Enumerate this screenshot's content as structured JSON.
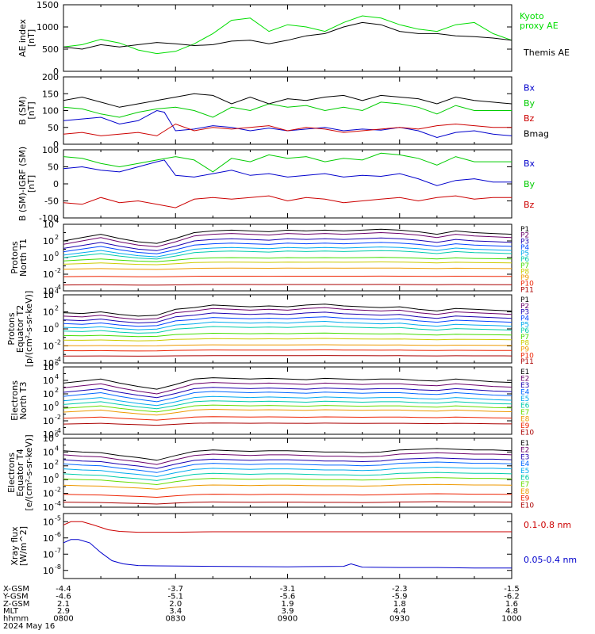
{
  "chart_data": [
    {
      "type": "line",
      "ylabel": [
        "AE index",
        "[nT]"
      ],
      "ylim": [
        0,
        1500
      ],
      "yticks": [
        "0",
        "500",
        "1000",
        "1500"
      ],
      "series": [
        {
          "name": "Kyoto proxy AE",
          "name_lines": [
            "Kyoto",
            "proxy AE"
          ],
          "color": "#00dd00",
          "x": [
            0,
            5,
            10,
            15,
            20,
            25,
            30,
            35,
            40,
            45,
            50,
            55,
            60,
            65,
            70,
            75,
            80,
            85,
            90,
            95,
            100,
            105,
            110,
            115,
            120
          ],
          "values": [
            550,
            600,
            720,
            640,
            480,
            400,
            450,
            620,
            850,
            1150,
            1200,
            900,
            1050,
            1000,
            900,
            1100,
            1250,
            1200,
            1050,
            950,
            900,
            1050,
            1100,
            850,
            700
          ]
        },
        {
          "name": "Themis AE",
          "name_lines": [
            "Themis AE"
          ],
          "color": "#000000",
          "x": [
            0,
            5,
            10,
            15,
            20,
            25,
            30,
            35,
            40,
            45,
            50,
            55,
            60,
            65,
            70,
            75,
            80,
            85,
            90,
            95,
            100,
            105,
            110,
            115,
            120
          ],
          "values": [
            550,
            500,
            600,
            550,
            600,
            650,
            620,
            580,
            600,
            680,
            700,
            620,
            700,
            800,
            850,
            1000,
            1100,
            1050,
            900,
            850,
            850,
            800,
            780,
            750,
            700
          ]
        }
      ]
    },
    {
      "type": "line",
      "ylabel": [
        "B (SM)",
        "[nT]"
      ],
      "ylim": [
        0,
        200
      ],
      "yticks": [
        "0",
        "50",
        "100",
        "150",
        "200"
      ],
      "series": [
        {
          "name": "Bx",
          "color": "#0000cc",
          "x": [
            0,
            5,
            10,
            15,
            20,
            25,
            27,
            30,
            35,
            40,
            45,
            50,
            55,
            60,
            65,
            70,
            75,
            80,
            85,
            90,
            95,
            100,
            105,
            110,
            115,
            120
          ],
          "values": [
            70,
            75,
            80,
            60,
            70,
            100,
            95,
            40,
            45,
            55,
            50,
            40,
            48,
            40,
            45,
            50,
            40,
            45,
            42,
            50,
            40,
            20,
            35,
            40,
            30,
            25
          ]
        },
        {
          "name": "By",
          "color": "#00cc00",
          "x": [
            0,
            5,
            10,
            15,
            20,
            25,
            30,
            35,
            40,
            45,
            50,
            55,
            60,
            65,
            70,
            75,
            80,
            85,
            90,
            95,
            100,
            105,
            110,
            115,
            120
          ],
          "values": [
            110,
            105,
            90,
            80,
            95,
            105,
            110,
            100,
            80,
            110,
            100,
            120,
            110,
            115,
            100,
            110,
            100,
            125,
            120,
            110,
            90,
            115,
            100,
            100,
            100
          ]
        },
        {
          "name": "Bz",
          "color": "#cc0000",
          "x": [
            0,
            5,
            10,
            15,
            20,
            25,
            30,
            35,
            40,
            45,
            50,
            55,
            60,
            65,
            70,
            75,
            80,
            85,
            90,
            95,
            100,
            105,
            110,
            115,
            120
          ],
          "values": [
            30,
            35,
            25,
            30,
            35,
            25,
            60,
            40,
            50,
            45,
            50,
            55,
            40,
            50,
            45,
            35,
            40,
            45,
            50,
            45,
            55,
            60,
            55,
            50,
            50
          ]
        },
        {
          "name": "Bmag",
          "color": "#000000",
          "x": [
            0,
            5,
            10,
            15,
            20,
            25,
            30,
            35,
            40,
            45,
            50,
            55,
            60,
            65,
            70,
            75,
            80,
            85,
            90,
            95,
            100,
            105,
            110,
            115,
            120
          ],
          "values": [
            130,
            140,
            125,
            110,
            120,
            130,
            140,
            150,
            145,
            120,
            140,
            120,
            135,
            130,
            140,
            145,
            130,
            145,
            140,
            135,
            120,
            140,
            130,
            125,
            120
          ]
        }
      ]
    },
    {
      "type": "line",
      "ylabel": [
        "B (SM)-IGRF (SM)",
        "[nT]"
      ],
      "ylim": [
        -100,
        100
      ],
      "yticks": [
        "-100",
        "-50",
        "0",
        "50",
        "100"
      ],
      "series": [
        {
          "name": "Bx",
          "color": "#0000cc",
          "x": [
            0,
            5,
            10,
            15,
            20,
            25,
            27,
            30,
            35,
            40,
            45,
            50,
            55,
            60,
            65,
            70,
            75,
            80,
            85,
            90,
            95,
            100,
            105,
            110,
            115,
            120
          ],
          "values": [
            45,
            50,
            40,
            35,
            50,
            65,
            70,
            25,
            20,
            30,
            40,
            25,
            30,
            20,
            25,
            30,
            20,
            25,
            22,
            30,
            15,
            -5,
            10,
            15,
            5,
            5
          ]
        },
        {
          "name": "By",
          "color": "#00cc00",
          "x": [
            0,
            5,
            10,
            15,
            20,
            25,
            30,
            35,
            40,
            45,
            50,
            55,
            60,
            65,
            70,
            75,
            80,
            85,
            90,
            95,
            100,
            105,
            110,
            115,
            120
          ],
          "values": [
            80,
            75,
            60,
            50,
            60,
            70,
            80,
            70,
            35,
            75,
            65,
            85,
            75,
            80,
            65,
            75,
            70,
            90,
            85,
            75,
            55,
            80,
            65,
            65,
            65
          ]
        },
        {
          "name": "Bz",
          "color": "#cc0000",
          "x": [
            0,
            5,
            10,
            15,
            20,
            25,
            30,
            35,
            40,
            45,
            50,
            55,
            60,
            65,
            70,
            75,
            80,
            85,
            90,
            95,
            100,
            105,
            110,
            115,
            120
          ],
          "values": [
            -55,
            -60,
            -40,
            -55,
            -50,
            -60,
            -70,
            -45,
            -40,
            -45,
            -40,
            -35,
            -50,
            -40,
            -45,
            -55,
            -50,
            -45,
            -40,
            -50,
            -40,
            -35,
            -45,
            -40,
            -40
          ]
        }
      ]
    },
    {
      "type": "line",
      "log": true,
      "ylabel": [
        "Protons",
        "North T1"
      ],
      "ylim": [
        -4,
        4
      ],
      "yticks": [
        -4,
        -2,
        0,
        2,
        4
      ],
      "legend": [
        "P1",
        "P2",
        "P3",
        "P4",
        "P5",
        "P6",
        "P7",
        "P8",
        "P9",
        "P10",
        "P11"
      ],
      "colors": [
        "#000000",
        "#6a006a",
        "#1a00b0",
        "#0044ff",
        "#00aaee",
        "#00ccaa",
        "#44dd00",
        "#cccc00",
        "#ee9900",
        "#ee2200",
        "#aa0000"
      ],
      "base": [
        2.0,
        1.6,
        1.1,
        0.7,
        0.3,
        0.0,
        -0.4,
        -0.8,
        -1.4,
        -2.3,
        -3.3
      ],
      "shape": [
        0,
        0.4,
        0.8,
        0.3,
        -0.1,
        -0.3,
        0.3,
        1.0,
        1.2,
        1.3,
        1.2,
        1.1,
        1.3,
        1.2,
        1.3,
        1.2,
        1.3,
        1.4,
        1.3,
        1.1,
        0.8,
        1.2,
        1.0,
        0.9,
        0.8
      ],
      "damping": [
        1,
        1,
        0.9,
        0.8,
        0.7,
        0.6,
        0.3,
        0.2,
        0.1,
        0.05,
        0.05
      ]
    },
    {
      "type": "line",
      "log": true,
      "ylabel": [
        "Protons",
        "Equator T2",
        "[p/(cm²-s-sr-keV)]"
      ],
      "ylim": [
        -4,
        4
      ],
      "yticks": [
        -4,
        -2,
        0,
        2,
        4
      ],
      "legend": [
        "P1",
        "P2",
        "P3",
        "P4",
        "P5",
        "P6",
        "P7",
        "P8",
        "P9",
        "P10",
        "P11"
      ],
      "colors": [
        "#000000",
        "#6a006a",
        "#1a00b0",
        "#0044ff",
        "#00aaee",
        "#00ccaa",
        "#44dd00",
        "#cccc00",
        "#ee9900",
        "#ee2200",
        "#aa0000"
      ],
      "base": [
        1.5,
        1.1,
        0.7,
        0.3,
        -0.1,
        -0.5,
        -0.9,
        -1.4,
        -2.0,
        -2.6,
        -3.2
      ],
      "shape": [
        0.4,
        0.3,
        0.5,
        0.2,
        0,
        0.1,
        0.8,
        1.0,
        1.3,
        1.2,
        1.1,
        1.2,
        1.1,
        1.3,
        1.4,
        1.2,
        1.1,
        1.0,
        1.1,
        0.8,
        0.6,
        0.9,
        0.8,
        0.7,
        0.6
      ],
      "damping": [
        1,
        1,
        0.9,
        0.8,
        0.7,
        0.6,
        0.3,
        0.2,
        0.1,
        0.1,
        0.05
      ]
    },
    {
      "type": "line",
      "log": true,
      "ylabel": [
        "Electrons",
        "North T3"
      ],
      "ylim": [
        -4,
        6
      ],
      "yticks": [
        -4,
        -2,
        0,
        2,
        4,
        6
      ],
      "legend": [
        "E1",
        "E2",
        "E3",
        "E4",
        "E5",
        "E6",
        "E7",
        "E8",
        "E9",
        "E10"
      ],
      "colors": [
        "#000000",
        "#6a006a",
        "#1a00b0",
        "#0066ff",
        "#00aaee",
        "#00ccaa",
        "#66dd00",
        "#ee9900",
        "#ee2200",
        "#aa0000"
      ],
      "base": [
        3.0,
        2.3,
        1.7,
        1.1,
        0.5,
        0.0,
        -0.5,
        -1.0,
        -1.8,
        -2.6
      ],
      "shape": [
        0.6,
        0.9,
        1.2,
        0.6,
        0.1,
        -0.3,
        0.4,
        1.2,
        1.4,
        1.3,
        1.2,
        1.3,
        1.2,
        1.1,
        1.3,
        1.2,
        1.1,
        1.2,
        1.2,
        1.0,
        0.9,
        1.2,
        1.0,
        0.8,
        0.7
      ],
      "damping": [
        1,
        1,
        0.9,
        0.9,
        0.8,
        0.7,
        0.6,
        0.5,
        0.3,
        0.2
      ]
    },
    {
      "type": "line",
      "log": true,
      "ylabel": [
        "Electrons",
        "Equator T4",
        "[e/(cm²-s-sr-keV)]"
      ],
      "ylim": [
        -4,
        6
      ],
      "yticks": [
        -4,
        -2,
        0,
        2,
        4,
        6
      ],
      "legend": [
        "E1",
        "E2",
        "E3",
        "E4",
        "E5",
        "E6",
        "E7",
        "E8",
        "E9",
        "E10"
      ],
      "colors": [
        "#000000",
        "#6a006a",
        "#1a00b0",
        "#0066ff",
        "#00aaee",
        "#00ccaa",
        "#66dd00",
        "#ee9900",
        "#ee2200",
        "#aa0000"
      ],
      "base": [
        3.0,
        2.4,
        1.8,
        1.2,
        0.6,
        0.0,
        -0.6,
        -1.3,
        -2.5,
        -3.5
      ],
      "shape": [
        1.2,
        1.0,
        0.9,
        0.5,
        0.2,
        -0.2,
        0.5,
        1.1,
        1.3,
        1.2,
        1.1,
        1.2,
        1.2,
        1.1,
        1.0,
        1.0,
        0.9,
        1.0,
        1.3,
        1.4,
        1.5,
        1.4,
        1.3,
        1.3,
        1.2
      ],
      "damping": [
        1,
        1,
        0.9,
        0.9,
        0.8,
        0.7,
        0.6,
        0.4,
        0.3,
        0.2
      ]
    },
    {
      "type": "line",
      "log": true,
      "ylabel": [
        "Xray flux",
        "[W/m^2]"
      ],
      "ylim": [
        -8.5,
        -4.5
      ],
      "yticks": [
        -8,
        -7,
        -6,
        -5
      ],
      "series": [
        {
          "name": "0.1-0.8 nm",
          "color": "#cc0000",
          "x": [
            0,
            2,
            5,
            8,
            12,
            15,
            20,
            30,
            40,
            60,
            80,
            100,
            120
          ],
          "values": [
            -5.2,
            -5.0,
            -5.0,
            -5.2,
            -5.5,
            -5.6,
            -5.65,
            -5.65,
            -5.62,
            -5.62,
            -5.62,
            -5.62,
            -5.62
          ]
        },
        {
          "name": "0.05-0.4 nm",
          "color": "#0000cc",
          "x": [
            0,
            2,
            4,
            7,
            10,
            13,
            16,
            20,
            25,
            40,
            60,
            75,
            77,
            80,
            90,
            100,
            110,
            120
          ],
          "values": [
            -6.3,
            -6.1,
            -6.1,
            -6.3,
            -6.9,
            -7.4,
            -7.6,
            -7.7,
            -7.72,
            -7.75,
            -7.78,
            -7.75,
            -7.6,
            -7.8,
            -7.82,
            -7.82,
            -7.85,
            -7.85
          ]
        }
      ]
    }
  ],
  "orbit": {
    "row_labels": [
      "X-GSM",
      "Y-GSM",
      "Z-GSM",
      "MLT",
      "hhmm"
    ],
    "columns": [
      {
        "x": 0,
        "values": [
          "-4.4",
          "-4.6",
          "2.1",
          "2.9",
          "0800"
        ]
      },
      {
        "x": 30,
        "values": [
          "-3.7",
          "-5.1",
          "2.0",
          "3.4",
          "0830"
        ]
      },
      {
        "x": 60,
        "values": [
          "-3.1",
          "-5.6",
          "1.9",
          "3.9",
          "0900"
        ]
      },
      {
        "x": 90,
        "values": [
          "-2.3",
          "-5.9",
          "1.8",
          "4.4",
          "0930"
        ]
      },
      {
        "x": 120,
        "values": [
          "-1.5",
          "-6.2",
          "1.6",
          "4.8",
          "1000"
        ]
      }
    ],
    "date": "2024 May 16"
  }
}
